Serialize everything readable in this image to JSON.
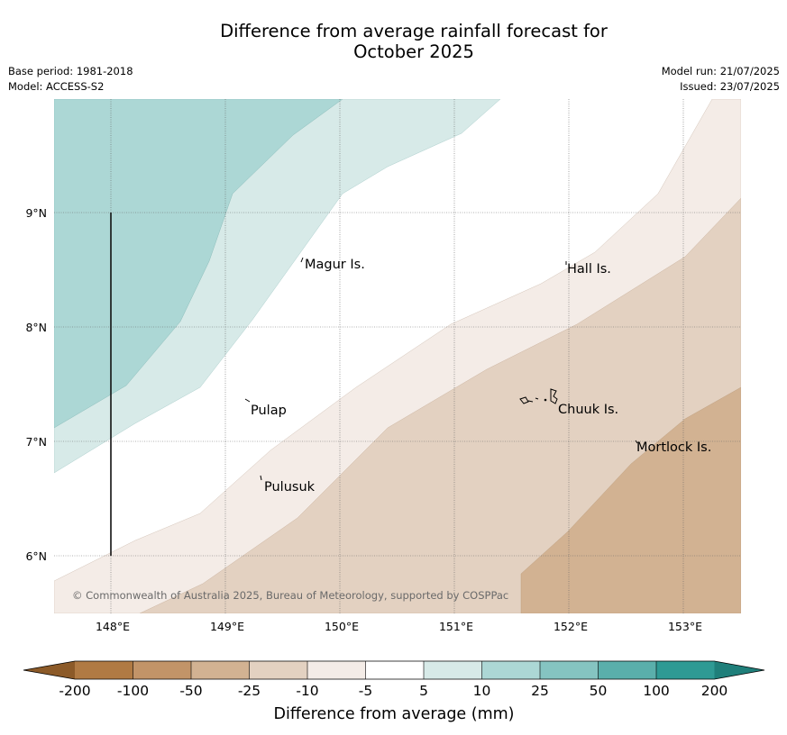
{
  "title_line1": "Difference from average rainfall forecast for",
  "title_line2": "October 2025",
  "base_period": "Base period: 1981-2018",
  "model": "Model: ACCESS-S2",
  "model_run": "Model run: 21/07/2025",
  "issued": "Issued: 23/07/2025",
  "lat_ticks": [
    "9°N",
    "8°N",
    "7°N",
    "6°N"
  ],
  "lon_ticks": [
    "148°E",
    "149°E",
    "150°E",
    "151°E",
    "152°E",
    "153°E"
  ],
  "places": [
    {
      "name": "Magur Is."
    },
    {
      "name": "Hall Is."
    },
    {
      "name": "Pulap"
    },
    {
      "name": "Chuuk Is."
    },
    {
      "name": "Mortlock Is."
    },
    {
      "name": "Pulusuk"
    }
  ],
  "copyright": "© Commonwealth of Australia 2025, Bureau of Meteorology, supported by COSPPac",
  "colorbar": {
    "label": "Difference from average (mm)",
    "ticks": [
      "-200",
      "-100",
      "-50",
      "-25",
      "-10",
      "-5",
      "5",
      "10",
      "25",
      "50",
      "100",
      "200"
    ],
    "colors": [
      "#8c5a28",
      "#b07a43",
      "#c29468",
      "#d2b292",
      "#e3d1c1",
      "#f4ece7",
      "#ffffff",
      "#d7eae8",
      "#acd7d5",
      "#85c4c1",
      "#5aafab",
      "#2e9a94",
      "#1f7f7a"
    ]
  }
}
